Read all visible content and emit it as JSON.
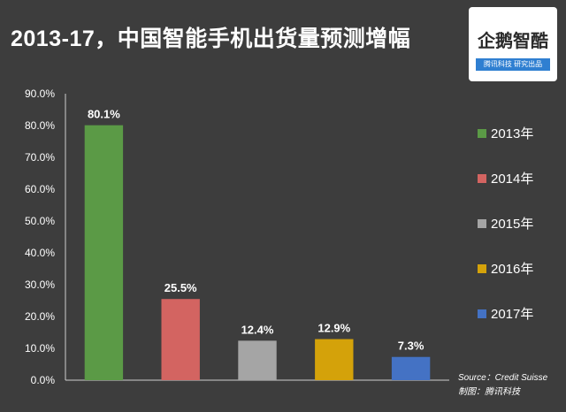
{
  "title": "2013-17，中国智能手机出货量预测增幅",
  "logo": {
    "text": "企鹅智酷",
    "subtext": "腾讯科技  研究出品"
  },
  "footer": {
    "source": "Source：Credit Suisse",
    "credit": "制图：腾讯科技"
  },
  "chart_data": {
    "type": "bar",
    "title": "2013-17，中国智能手机出货量预测增幅",
    "categories": [
      "2013年",
      "2014年",
      "2015年",
      "2016年",
      "2017年"
    ],
    "values": [
      80.1,
      25.5,
      12.4,
      12.9,
      7.3
    ],
    "value_labels": [
      "80.1%",
      "25.5%",
      "12.4%",
      "12.9%",
      "7.3%"
    ],
    "colors": [
      "#5b9a46",
      "#d36461",
      "#a5a5a5",
      "#d4a20a",
      "#4472c4"
    ],
    "ylim": [
      0,
      90
    ],
    "yticks": [
      "0.0%",
      "10.0%",
      "20.0%",
      "30.0%",
      "40.0%",
      "50.0%",
      "60.0%",
      "70.0%",
      "80.0%",
      "90.0%"
    ],
    "legend_position": "right",
    "grid": false
  }
}
